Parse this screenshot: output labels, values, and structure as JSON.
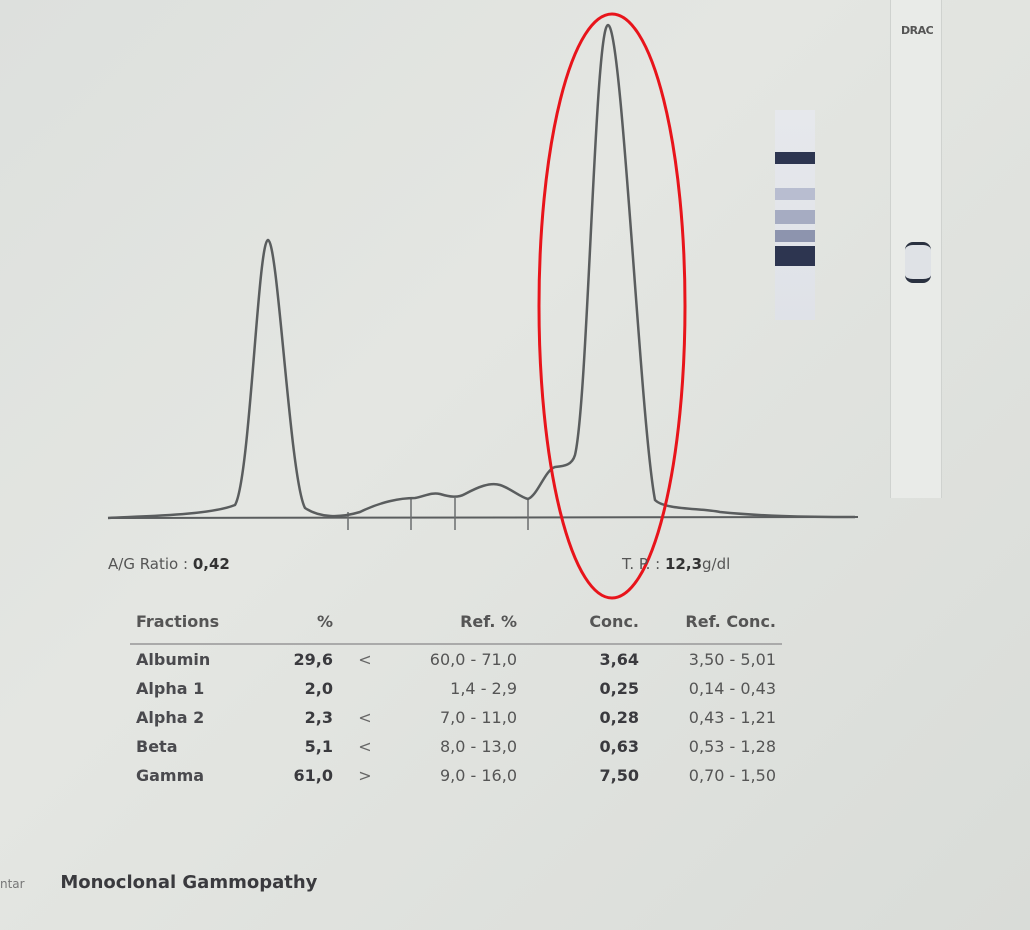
{
  "chart_data": {
    "type": "line",
    "title": "",
    "xlabel": "",
    "ylabel": "",
    "grid": false,
    "peaks": [
      "Albumin",
      "Gamma"
    ],
    "fraction_boundaries": [
      "Albumin|Alpha 1",
      "Alpha 1|Alpha 2",
      "Alpha 2|Beta",
      "Beta|Gamma"
    ],
    "highlight": {
      "shape": "ellipse",
      "target": "Gamma peak",
      "color": "#e8141b"
    },
    "line_color": "#5a5d5e"
  },
  "strip": {
    "label": "DRAC"
  },
  "summary": {
    "ag_label": "A/G Ratio : ",
    "ag_value": "0,42",
    "tp_label": "T. P. : ",
    "tp_value": "12,3",
    "tp_unit": "g/dl"
  },
  "table": {
    "headers": [
      "Fractions",
      "%",
      "",
      "Ref. %",
      "Conc.",
      "Ref. Conc."
    ],
    "rows": [
      {
        "name": "Albumin",
        "pct": "29,6",
        "flag": "<",
        "ref": "60,0 - 71,0",
        "conc": "3,64",
        "refc": "3,50 - 5,01"
      },
      {
        "name": "Alpha 1",
        "pct": "2,0",
        "flag": "",
        "ref": "1,4 - 2,9",
        "conc": "0,25",
        "refc": "0,14 - 0,43"
      },
      {
        "name": "Alpha 2",
        "pct": "2,3",
        "flag": "<",
        "ref": "7,0 - 11,0",
        "conc": "0,28",
        "refc": "0,43 - 1,21"
      },
      {
        "name": "Beta",
        "pct": "5,1",
        "flag": "<",
        "ref": "8,0 - 13,0",
        "conc": "0,63",
        "refc": "0,53 - 1,28"
      },
      {
        "name": "Gamma",
        "pct": "61,0",
        "flag": ">",
        "ref": "9,0 - 16,0",
        "conc": "7,50",
        "refc": "0,70 - 1,50"
      }
    ]
  },
  "comment": {
    "label": "ntar",
    "value": "Monoclonal Gammopathy"
  }
}
